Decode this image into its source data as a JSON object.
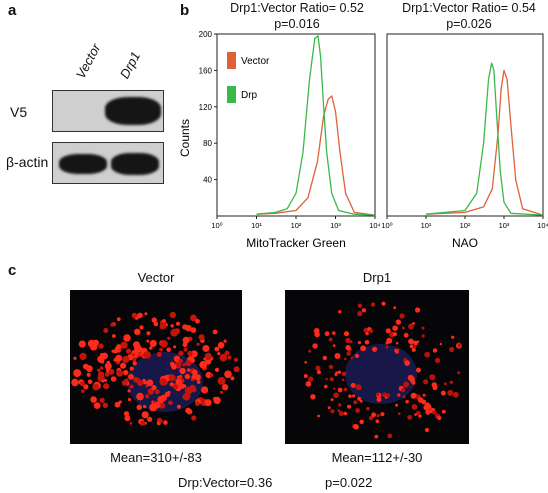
{
  "panel_a": {
    "letter": "a",
    "lanes": [
      "Vector",
      "Drp1"
    ],
    "rows": [
      "V5",
      "β-actin"
    ]
  },
  "panel_b": {
    "letter": "b",
    "left": {
      "ratio": "Drp1:Vector Ratio= 0.52",
      "p": "p=0.016"
    },
    "right": {
      "ratio": "Drp1:Vector Ratio= 0.54",
      "p": "p=0.026"
    },
    "legend": [
      "Vector",
      "Drp"
    ],
    "colors": {
      "vector": "#e0603a",
      "drp": "#3bb84a"
    }
  },
  "panel_c": {
    "letter": "c",
    "titles": [
      "Vector",
      "Drp1"
    ],
    "means": [
      "Mean=310+/-83",
      "Mean=112+/-30"
    ],
    "ratio": "Drp:Vector=0.36",
    "p": "p=0.022"
  },
  "chart_data": [
    {
      "type": "line",
      "title": "Drp1:Vector Ratio= 0.52 p=0.016",
      "xlabel": "MitoTracker Green",
      "ylabel": "Counts",
      "xscale": "log",
      "xlim": [
        1,
        10000
      ],
      "ylim": [
        0,
        200
      ],
      "xticks": [
        "10⁰",
        "10¹",
        "10²",
        "10³",
        "10⁴"
      ],
      "yticks": [
        40,
        80,
        120,
        160,
        200
      ],
      "legend_position": "top-left",
      "series": [
        {
          "name": "Vector",
          "x": [
            10,
            30,
            100,
            200,
            350,
            500,
            650,
            800,
            1000,
            1300,
            1800,
            3000,
            10000
          ],
          "y": [
            2,
            3,
            6,
            20,
            60,
            110,
            128,
            132,
            115,
            70,
            25,
            4,
            1
          ]
        },
        {
          "name": "Drp",
          "x": [
            10,
            30,
            60,
            100,
            150,
            220,
            300,
            360,
            420,
            500,
            600,
            800,
            1200,
            3000,
            10000
          ],
          "y": [
            2,
            4,
            8,
            25,
            70,
            150,
            195,
            198,
            175,
            120,
            70,
            25,
            6,
            2,
            1
          ]
        }
      ]
    },
    {
      "type": "line",
      "title": "Drp1:Vector Ratio= 0.54 p=0.026",
      "xlabel": "NAO",
      "ylabel": "Counts",
      "xscale": "log",
      "xlim": [
        1,
        10000
      ],
      "ylim": [
        0,
        200
      ],
      "xticks": [
        "10⁰",
        "10¹",
        "10²",
        "10³",
        "10⁴"
      ],
      "yticks": [
        40,
        80,
        120,
        160,
        200
      ],
      "series": [
        {
          "name": "Vector",
          "x": [
            10,
            100,
            300,
            500,
            700,
            850,
            1000,
            1200,
            1500,
            2000,
            3000,
            10000
          ],
          "y": [
            2,
            4,
            10,
            30,
            90,
            140,
            160,
            150,
            100,
            40,
            8,
            1
          ]
        },
        {
          "name": "Drp",
          "x": [
            10,
            100,
            200,
            300,
            400,
            480,
            550,
            650,
            800,
            1000,
            1500,
            10000
          ],
          "y": [
            2,
            6,
            25,
            80,
            150,
            168,
            160,
            110,
            50,
            15,
            3,
            1
          ]
        }
      ]
    }
  ]
}
